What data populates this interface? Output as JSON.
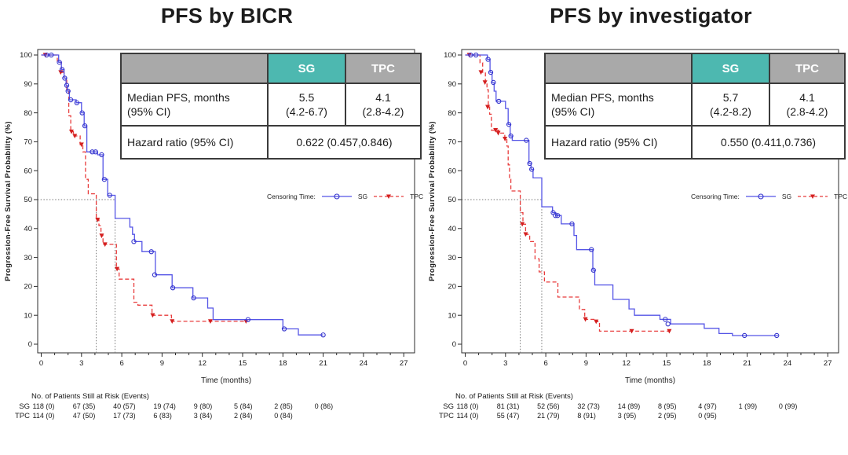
{
  "legend": {
    "label": "Censoring Time:",
    "sg": "SG",
    "tpc": "TPC"
  },
  "colors": {
    "sg_line": "#5555e6",
    "sg_marker": "#3333cc",
    "tpc_line": "#e83c3c",
    "tpc_marker": "#d42020",
    "header_gray": "#a9a9a9",
    "header_teal": "#4db8b0",
    "reference": "#777777",
    "frame": "#2b2b2b"
  },
  "chart_data": [
    {
      "type": "line",
      "subtype": "kaplan-meier-step",
      "title": "PFS by BICR",
      "xlabel": "Time (months)",
      "ylabel": "Progression-Free Survival Probability (%)",
      "xlim": [
        0,
        27
      ],
      "ylim": [
        0,
        100
      ],
      "xtick_major": 3,
      "xtick_minor": 1,
      "ytick_major": 10,
      "reference_level": 50,
      "grid": false,
      "legend_position": "right-middle",
      "summary": {
        "headers": [
          "SG",
          "TPC"
        ],
        "median_label": [
          "Median PFS, months",
          "(95% CI)"
        ],
        "median_sg": [
          "5.5",
          "(4.2-6.7)"
        ],
        "median_tpc": [
          "4.1",
          "(2.8-4.2)"
        ],
        "hr_label": "Hazard ratio (95% CI)",
        "hr_value": "0.622 (0.457,0.846)"
      },
      "series": [
        {
          "name": "SG",
          "style": "solid",
          "marker": "open-circle",
          "median": 5.5,
          "steps": [
            [
              0,
              100
            ],
            [
              1.3,
              97.5
            ],
            [
              1.5,
              95
            ],
            [
              1.7,
              92
            ],
            [
              1.85,
              89.5
            ],
            [
              1.95,
              87.5
            ],
            [
              2.1,
              84.5
            ],
            [
              2.6,
              83.5
            ],
            [
              3.0,
              80
            ],
            [
              3.2,
              75.5
            ],
            [
              3.4,
              66.5
            ],
            [
              4.2,
              65.5
            ],
            [
              4.6,
              57
            ],
            [
              4.95,
              51.5
            ],
            [
              5.5,
              43.5
            ],
            [
              6.6,
              40.5
            ],
            [
              6.8,
              38
            ],
            [
              6.95,
              35.5
            ],
            [
              7.5,
              32
            ],
            [
              8.5,
              24
            ],
            [
              9.75,
              19.5
            ],
            [
              11.3,
              16
            ],
            [
              12.4,
              12.5
            ],
            [
              12.8,
              8.5
            ],
            [
              18.0,
              5.3
            ],
            [
              19.15,
              3.2
            ],
            [
              21.0,
              3.2
            ]
          ],
          "censors": [
            [
              0.4,
              100
            ],
            [
              0.75,
              100
            ],
            [
              1.35,
              97.5
            ],
            [
              1.55,
              95
            ],
            [
              1.75,
              92
            ],
            [
              1.9,
              89.5
            ],
            [
              2.0,
              87.5
            ],
            [
              2.2,
              84.5
            ],
            [
              2.65,
              83.5
            ],
            [
              3.05,
              80
            ],
            [
              3.25,
              75.5
            ],
            [
              3.8,
              66.5
            ],
            [
              4.05,
              66.5
            ],
            [
              4.5,
              65.5
            ],
            [
              4.7,
              57
            ],
            [
              5.1,
              51.5
            ],
            [
              6.9,
              35.5
            ],
            [
              8.2,
              32
            ],
            [
              8.45,
              24
            ],
            [
              9.8,
              19.5
            ],
            [
              11.35,
              16
            ],
            [
              15.4,
              8.5
            ],
            [
              18.1,
              5.3
            ],
            [
              21.0,
              3.2
            ]
          ]
        },
        {
          "name": "TPC",
          "style": "dashed",
          "marker": "filled-triangle-down",
          "median": 4.1,
          "steps": [
            [
              0,
              100
            ],
            [
              1.2,
              97.5
            ],
            [
              1.5,
              94
            ],
            [
              1.7,
              92
            ],
            [
              1.9,
              88
            ],
            [
              2.05,
              79
            ],
            [
              2.2,
              73.5
            ],
            [
              2.4,
              72
            ],
            [
              2.9,
              69
            ],
            [
              3.1,
              66.5
            ],
            [
              3.3,
              57
            ],
            [
              3.5,
              52
            ],
            [
              4.1,
              43
            ],
            [
              4.3,
              41
            ],
            [
              4.45,
              37.5
            ],
            [
              4.6,
              34.5
            ],
            [
              5.6,
              26
            ],
            [
              5.8,
              22.5
            ],
            [
              6.9,
              14.5
            ],
            [
              7.2,
              13.5
            ],
            [
              8.25,
              10
            ],
            [
              9.7,
              7.9
            ],
            [
              15.3,
              7.9
            ]
          ],
          "censors": [
            [
              0.3,
              100
            ],
            [
              1.45,
              94
            ],
            [
              2.25,
              73.5
            ],
            [
              2.5,
              72
            ],
            [
              3.0,
              69
            ],
            [
              4.2,
              43
            ],
            [
              4.5,
              37.5
            ],
            [
              4.75,
              34.5
            ],
            [
              5.65,
              26
            ],
            [
              8.3,
              10
            ],
            [
              9.75,
              7.9
            ],
            [
              12.6,
              7.9
            ],
            [
              15.25,
              7.9
            ]
          ]
        }
      ],
      "at_risk": {
        "header": "No. of Patients Still at Risk (Events)",
        "times": [
          0,
          3,
          6,
          9,
          12,
          15,
          18,
          21,
          24,
          27
        ],
        "rows": [
          {
            "name": "SG",
            "values": [
              "118 (0)",
              "67 (35)",
              "40 (57)",
              "19 (74)",
              "9 (80)",
              "5 (84)",
              "2 (85)",
              "0 (86)"
            ]
          },
          {
            "name": "TPC",
            "values": [
              "114 (0)",
              "47 (50)",
              "17 (73)",
              "6 (83)",
              "3 (84)",
              "2 (84)",
              "0 (84)"
            ]
          }
        ]
      }
    },
    {
      "type": "line",
      "subtype": "kaplan-meier-step",
      "title": "PFS by investigator",
      "xlabel": "Time (months)",
      "ylabel": "Progression-Free Survival Probability (%)",
      "xlim": [
        0,
        27
      ],
      "ylim": [
        0,
        100
      ],
      "xtick_major": 3,
      "xtick_minor": 1,
      "ytick_major": 10,
      "reference_level": 50,
      "grid": false,
      "legend_position": "right-middle",
      "summary": {
        "headers": [
          "SG",
          "TPC"
        ],
        "median_label": [
          "Median PFS, months",
          "(95% CI)"
        ],
        "median_sg": [
          "5.7",
          "(4.2-8.2)"
        ],
        "median_tpc": [
          "4.1",
          "(2.8-4.2)"
        ],
        "hr_label": "Hazard ratio (95% CI)",
        "hr_value": "0.550 (0.411,0.736)"
      },
      "series": [
        {
          "name": "SG",
          "style": "solid",
          "marker": "open-circle",
          "median": 5.7,
          "steps": [
            [
              0,
              100
            ],
            [
              1.65,
              98.5
            ],
            [
              1.85,
              94
            ],
            [
              2.0,
              90.5
            ],
            [
              2.15,
              87.5
            ],
            [
              2.3,
              84
            ],
            [
              3.0,
              81.5
            ],
            [
              3.2,
              76
            ],
            [
              3.35,
              72
            ],
            [
              3.5,
              70.5
            ],
            [
              4.75,
              62.5
            ],
            [
              4.9,
              60.5
            ],
            [
              5.05,
              57.5
            ],
            [
              5.7,
              47.5
            ],
            [
              6.5,
              45.5
            ],
            [
              6.75,
              44.5
            ],
            [
              7.15,
              41.6
            ],
            [
              8.1,
              37.6
            ],
            [
              8.3,
              32.7
            ],
            [
              9.5,
              25.6
            ],
            [
              9.65,
              20.5
            ],
            [
              11.0,
              15.5
            ],
            [
              12.2,
              12.2
            ],
            [
              12.6,
              10
            ],
            [
              14.5,
              8.6
            ],
            [
              15.3,
              7
            ],
            [
              17.8,
              5.5
            ],
            [
              18.9,
              3.7
            ],
            [
              19.9,
              3.0
            ],
            [
              23.3,
              3.0
            ]
          ],
          "censors": [
            [
              0.4,
              100
            ],
            [
              0.8,
              100
            ],
            [
              1.7,
              98.5
            ],
            [
              1.9,
              94
            ],
            [
              2.1,
              90.5
            ],
            [
              2.5,
              84
            ],
            [
              3.25,
              76
            ],
            [
              3.4,
              72
            ],
            [
              4.55,
              70.5
            ],
            [
              4.8,
              62.5
            ],
            [
              4.95,
              60.5
            ],
            [
              6.55,
              45.5
            ],
            [
              6.72,
              44.5
            ],
            [
              6.88,
              44.5
            ],
            [
              7.95,
              41.6
            ],
            [
              9.4,
              32.7
            ],
            [
              9.55,
              25.6
            ],
            [
              14.9,
              8.6
            ],
            [
              15.1,
              7
            ],
            [
              20.8,
              3.0
            ],
            [
              23.2,
              3.0
            ]
          ]
        },
        {
          "name": "TPC",
          "style": "dashed",
          "marker": "filled-triangle-down",
          "median": 4.1,
          "steps": [
            [
              0,
              100
            ],
            [
              1.1,
              97.3
            ],
            [
              1.3,
              94
            ],
            [
              1.5,
              90.5
            ],
            [
              1.62,
              88
            ],
            [
              1.72,
              82
            ],
            [
              1.82,
              79.5
            ],
            [
              1.95,
              74
            ],
            [
              2.5,
              73
            ],
            [
              2.95,
              71
            ],
            [
              3.1,
              68.5
            ],
            [
              3.2,
              62
            ],
            [
              3.3,
              57
            ],
            [
              3.4,
              53
            ],
            [
              4.1,
              45.5
            ],
            [
              4.3,
              41.5
            ],
            [
              4.5,
              38
            ],
            [
              4.8,
              35.5
            ],
            [
              5.2,
              29.5
            ],
            [
              5.5,
              25
            ],
            [
              5.9,
              21.5
            ],
            [
              6.9,
              16.3
            ],
            [
              8.5,
              12
            ],
            [
              8.9,
              8.6
            ],
            [
              9.7,
              7.8
            ],
            [
              10.0,
              4.5
            ],
            [
              15.3,
              4.5
            ]
          ],
          "censors": [
            [
              0.3,
              100
            ],
            [
              1.17,
              94
            ],
            [
              1.47,
              90.5
            ],
            [
              1.67,
              82
            ],
            [
              2.26,
              74
            ],
            [
              2.46,
              73
            ],
            [
              2.96,
              71
            ],
            [
              4.25,
              41.5
            ],
            [
              4.5,
              38
            ],
            [
              8.95,
              8.6
            ],
            [
              9.75,
              7.8
            ],
            [
              12.4,
              4.5
            ],
            [
              15.2,
              4.5
            ]
          ]
        }
      ],
      "at_risk": {
        "header": "No. of Patients Still at Risk (Events)",
        "times": [
          0,
          3,
          6,
          9,
          12,
          15,
          18,
          21,
          24,
          27
        ],
        "rows": [
          {
            "name": "SG",
            "values": [
              "118 (0)",
              "81 (31)",
              "52 (56)",
              "32 (73)",
              "14 (89)",
              "8 (95)",
              "4 (97)",
              "1 (99)",
              "0 (99)"
            ]
          },
          {
            "name": "TPC",
            "values": [
              "114 (0)",
              "55 (47)",
              "21 (79)",
              "8 (91)",
              "3 (95)",
              "2 (95)",
              "0 (95)"
            ]
          }
        ]
      }
    }
  ]
}
